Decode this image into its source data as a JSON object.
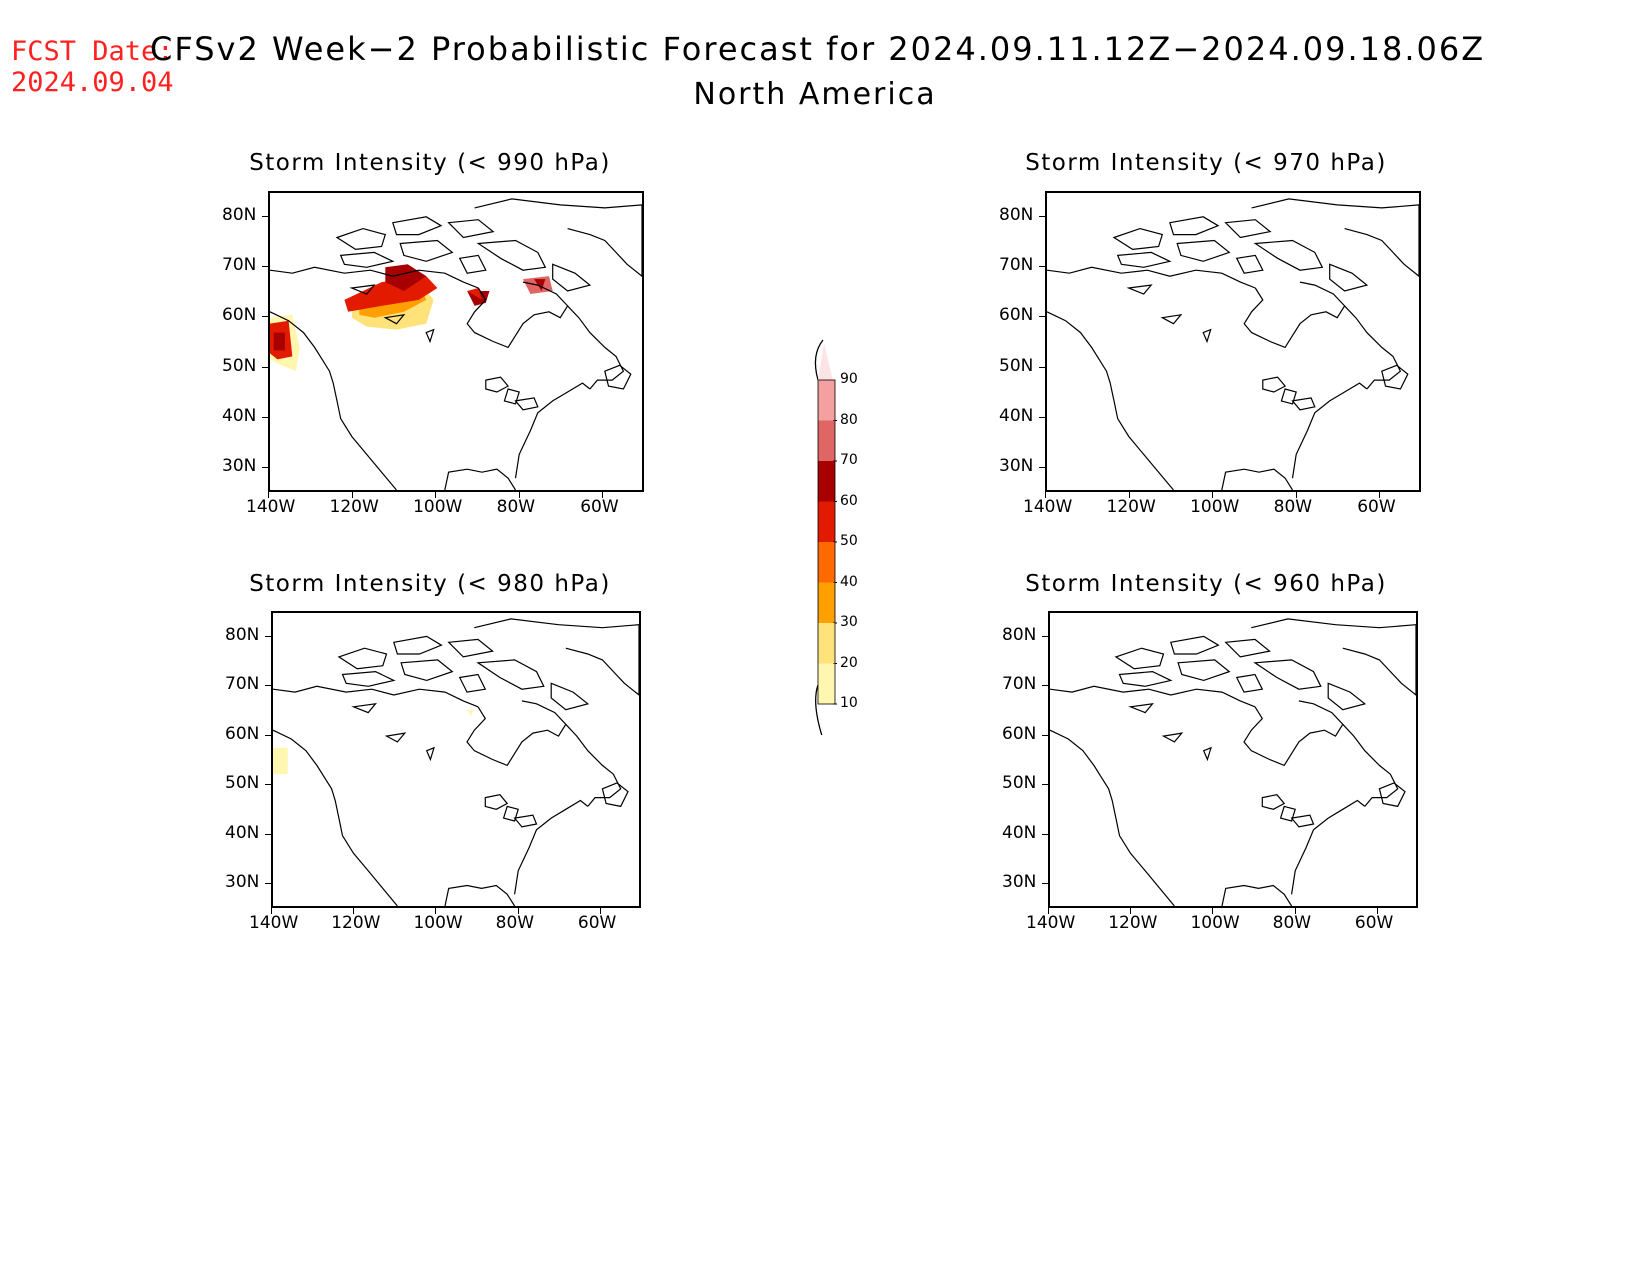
{
  "fcst_label": "FCST Date:",
  "fcst_date": "2024.09.04",
  "title": "CFSv2 Week−2 Probabilistic Forecast for 2024.09.11.12Z−2024.09.18.06Z",
  "subtitle": "North America",
  "panels": [
    {
      "title": "Storm Intensity (< 990 hPa)"
    },
    {
      "title": "Storm Intensity (< 970 hPa)"
    },
    {
      "title": "Storm Intensity (< 980 hPa)"
    },
    {
      "title": "Storm Intensity (< 960 hPa)"
    }
  ],
  "lat_labels": [
    "80N",
    "70N",
    "60N",
    "50N",
    "40N",
    "30N"
  ],
  "lon_labels": [
    "140W",
    "120W",
    "100W",
    "80W",
    "60W"
  ],
  "colorbar": {
    "levels": [
      "90",
      "80",
      "70",
      "60",
      "50",
      "40",
      "30",
      "20",
      "10"
    ],
    "colors": [
      "#fde4e4",
      "#f4a0a0",
      "#e06666",
      "#a80000",
      "#e21a00",
      "#ff6a00",
      "#ffa000",
      "#ffe27a",
      "#fff7b0"
    ]
  }
}
